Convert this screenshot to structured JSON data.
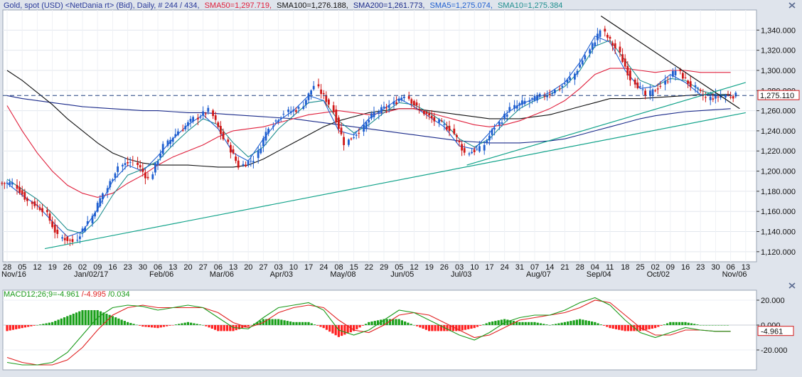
{
  "header": {
    "instrument": "Gold, spot (USD) <NetDania rt> (Bid), Daily, # 244 / 434,",
    "sma50": "SMA50=1,297.719,",
    "sma100": "SMA100=1,276.188,",
    "sma200": "SMA200=1,261.773,",
    "sma5": "SMA5=1,275.074,",
    "sma10": "SMA10=1,275.384"
  },
  "macd_header": {
    "macd": "MACD12;26;9=-4.961",
    "signal": "/-4.995",
    "hist": "/0.034"
  },
  "colors": {
    "up": "#1f5fd0",
    "down": "#d01818",
    "sma50": "#e0203c",
    "sma100": "#111111",
    "sma200": "#1a2a8a",
    "sma5": "#1f5fd0",
    "sma10": "#1f8f8f",
    "trend_down": "#111111",
    "trend_up": "#12a38a",
    "macd_line": "#1a9a1a",
    "signal_line": "#e02020",
    "hist_pos": "#1aa01a",
    "hist_neg": "#ff2020"
  },
  "chart_data": {
    "type": "candlestick",
    "interval": "Daily",
    "price_axis": {
      "min": 1110,
      "max": 1360,
      "ticks": [
        "1,120.000",
        "1,140.000",
        "1,160.000",
        "1,180.000",
        "1,200.000",
        "1,220.000",
        "1,240.000",
        "1,260.000",
        "1,280.000",
        "1,300.000",
        "1,320.000",
        "1,340.000"
      ],
      "tick_values": [
        1120,
        1140,
        1160,
        1180,
        1200,
        1220,
        1240,
        1260,
        1280,
        1300,
        1320,
        1340
      ]
    },
    "last_price": {
      "value": 1275.11,
      "label": "1,275.110"
    },
    "x_axis": {
      "day_labels": [
        "28",
        "05",
        "12",
        "19",
        "26",
        "02",
        "09",
        "16",
        "23",
        "30",
        "06",
        "13",
        "20",
        "27",
        "06",
        "13",
        "20",
        "27",
        "03",
        "10",
        "17",
        "24",
        "08",
        "15",
        "22",
        "29",
        "05",
        "12",
        "19",
        "26",
        "03",
        "10",
        "17",
        "24",
        "31",
        "07",
        "14",
        "21",
        "28",
        "04",
        "11",
        "18",
        "25",
        "02",
        "09",
        "16",
        "23",
        "30",
        "06",
        "13"
      ],
      "month_labels": [
        {
          "label": "Nov/16",
          "at": 0
        },
        {
          "label": "Jan/02/17",
          "at": 5
        },
        {
          "label": "Feb/06",
          "at": 10
        },
        {
          "label": "Mar/06",
          "at": 14
        },
        {
          "label": "Apr/03",
          "at": 18
        },
        {
          "label": "May/08",
          "at": 22
        },
        {
          "label": "Jun/05",
          "at": 26
        },
        {
          "label": "Jul/03",
          "at": 30
        },
        {
          "label": "Aug/07",
          "at": 35
        },
        {
          "label": "Sep/04",
          "at": 39
        },
        {
          "label": "Oct/02",
          "at": 43
        },
        {
          "label": "Nov/06",
          "at": 48
        }
      ]
    },
    "weekly_closes": [
      1188,
      1170,
      1162,
      1135,
      1130,
      1150,
      1178,
      1205,
      1210,
      1192,
      1225,
      1240,
      1252,
      1260,
      1232,
      1205,
      1212,
      1245,
      1258,
      1262,
      1285,
      1267,
      1228,
      1240,
      1258,
      1265,
      1276,
      1260,
      1250,
      1242,
      1218,
      1222,
      1244,
      1262,
      1269,
      1274,
      1280,
      1292,
      1315,
      1340,
      1322,
      1292,
      1275,
      1285,
      1300,
      1285,
      1272,
      1275,
      1275
    ],
    "sma": {
      "sma5": [
        1188,
        1176,
        1166,
        1150,
        1135,
        1140,
        1162,
        1190,
        1206,
        1200,
        1215,
        1232,
        1246,
        1256,
        1242,
        1218,
        1210,
        1232,
        1250,
        1260,
        1275,
        1270,
        1240,
        1236,
        1252,
        1262,
        1272,
        1264,
        1254,
        1244,
        1225,
        1222,
        1238,
        1256,
        1266,
        1272,
        1278,
        1288,
        1308,
        1334,
        1328,
        1300,
        1282,
        1284,
        1296,
        1288,
        1276,
        1275,
        1275
      ],
      "sma10": [
        1192,
        1182,
        1172,
        1158,
        1142,
        1138,
        1152,
        1176,
        1196,
        1202,
        1210,
        1226,
        1240,
        1252,
        1246,
        1228,
        1214,
        1224,
        1242,
        1255,
        1268,
        1270,
        1250,
        1238,
        1246,
        1258,
        1268,
        1266,
        1258,
        1248,
        1232,
        1224,
        1232,
        1248,
        1262,
        1270,
        1276,
        1284,
        1300,
        1324,
        1330,
        1310,
        1290,
        1284,
        1292,
        1290,
        1280,
        1276,
        1275
      ],
      "sma50": [
        1265,
        1240,
        1218,
        1200,
        1186,
        1178,
        1174,
        1178,
        1188,
        1196,
        1206,
        1214,
        1220,
        1226,
        1234,
        1240,
        1242,
        1244,
        1248,
        1252,
        1256,
        1258,
        1260,
        1258,
        1256,
        1258,
        1262,
        1262,
        1258,
        1254,
        1250,
        1246,
        1244,
        1246,
        1250,
        1256,
        1262,
        1270,
        1282,
        1296,
        1302,
        1302,
        1300,
        1298,
        1300,
        1300,
        1298,
        1298,
        1298
      ],
      "sma100": [
        1300,
        1290,
        1278,
        1266,
        1252,
        1240,
        1228,
        1218,
        1212,
        1208,
        1206,
        1206,
        1206,
        1205,
        1204,
        1204,
        1206,
        1212,
        1220,
        1228,
        1236,
        1244,
        1250,
        1254,
        1258,
        1260,
        1262,
        1262,
        1260,
        1258,
        1256,
        1254,
        1252,
        1252,
        1252,
        1254,
        1256,
        1260,
        1264,
        1268,
        1272,
        1272,
        1272,
        1273,
        1274,
        1275,
        1276,
        1276,
        1276
      ],
      "sma200": [
        1275,
        1272,
        1270,
        1268,
        1266,
        1264,
        1263,
        1262,
        1261,
        1260,
        1260,
        1259,
        1258,
        1258,
        1257,
        1256,
        1255,
        1254,
        1253,
        1252,
        1250,
        1248,
        1246,
        1244,
        1242,
        1240,
        1238,
        1236,
        1234,
        1232,
        1230,
        1229,
        1228,
        1228,
        1228,
        1229,
        1230,
        1232,
        1236,
        1240,
        1244,
        1248,
        1252,
        1255,
        1257,
        1259,
        1260,
        1261,
        1262
      ]
    },
    "trendlines": [
      {
        "name": "resistance",
        "from": {
          "week": 39.4,
          "price": 1354
        },
        "to": {
          "week": 48.6,
          "price": 1262
        }
      },
      {
        "name": "support-1",
        "from": {
          "week": 2.5,
          "price": 1123
        },
        "to": {
          "week": 49,
          "price": 1258
        }
      },
      {
        "name": "support-2",
        "from": {
          "week": 30.5,
          "price": 1206
        },
        "to": {
          "week": 49,
          "price": 1288
        }
      }
    ],
    "macd": {
      "axis": {
        "min": -36,
        "max": 28,
        "ticks": [
          "20.000",
          "0.000",
          "-20.000"
        ],
        "tick_values": [
          20,
          0,
          -20
        ]
      },
      "last_label": "-4.961",
      "macd_line": [
        -30,
        -32,
        -32,
        -30,
        -22,
        -8,
        6,
        14,
        16,
        15,
        12,
        14,
        16,
        14,
        6,
        -2,
        -3,
        6,
        14,
        16,
        18,
        12,
        -4,
        -8,
        -4,
        4,
        12,
        10,
        4,
        -2,
        -8,
        -12,
        -6,
        2,
        6,
        8,
        8,
        12,
        18,
        22,
        16,
        4,
        -6,
        -10,
        -6,
        -2,
        -4,
        -5,
        -5
      ],
      "signal_line": [
        -26,
        -30,
        -32,
        -32,
        -28,
        -18,
        -4,
        8,
        14,
        16,
        14,
        14,
        14,
        14,
        10,
        2,
        -2,
        2,
        10,
        14,
        16,
        14,
        4,
        -4,
        -6,
        0,
        8,
        10,
        8,
        2,
        -4,
        -10,
        -8,
        -2,
        4,
        6,
        8,
        10,
        14,
        20,
        18,
        8,
        -2,
        -8,
        -8,
        -4,
        -4,
        -5,
        -5
      ]
    }
  }
}
